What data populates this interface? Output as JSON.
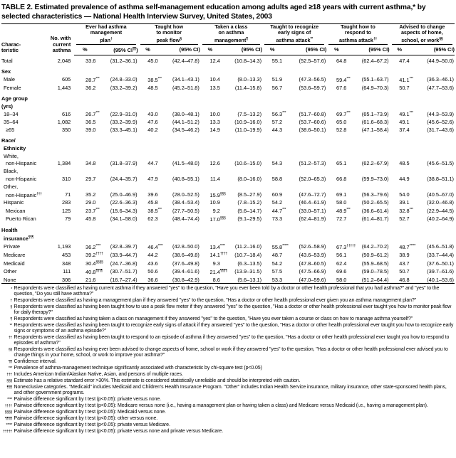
{
  "title": {
    "line1": "TABLE 2. Estimated prevalence of asthma self-management education among adults aged ≥18 years with current asthma,* by",
    "line2": "selected characteristics — National Health Interview Survey, United States, 2003"
  },
  "table": {
    "char_header": [
      "Charac-",
      "teristic"
    ],
    "n_header": [
      "No. with",
      "current",
      "asthma"
    ],
    "pct_header": "%",
    "ci_header": "(95% CI)",
    "groups": [
      {
        "lines": [
          "Ever had asthma",
          "management",
          "plan"
        ],
        "sup": "†",
        "ci_sup": "¶¶"
      },
      {
        "lines": [
          "Taught how",
          "to monitor",
          "peak flow"
        ],
        "sup": "§",
        "ci_sup": ""
      },
      {
        "lines": [
          "Taken a class",
          "on asthma",
          "management"
        ],
        "sup": "¶",
        "ci_sup": ""
      },
      {
        "lines": [
          "Taught to recognize",
          "early signs of",
          "asthma attack"
        ],
        "sup": "**",
        "ci_sup": ""
      },
      {
        "lines": [
          "Taught how to",
          "respond to",
          "asthma attack"
        ],
        "sup": "††",
        "ci_sup": ""
      },
      {
        "lines": [
          "Advised to change",
          "aspects of home,",
          "school, or work"
        ],
        "sup": "§§",
        "ci_sup": ""
      }
    ],
    "rows": [
      {
        "label": "Total",
        "indent": 0,
        "bold": false,
        "gap": false,
        "sup": "",
        "n": "2,048",
        "cells": [
          [
            "33.6",
            "",
            "(31.2–36.1)"
          ],
          [
            "45.0",
            "",
            "(42.4–47.8)"
          ],
          [
            "12.4",
            "",
            "(10.8–14.3)"
          ],
          [
            "55.1",
            "",
            "(52.5–57.6)"
          ],
          [
            "64.8",
            "",
            "(62.4–67.2)"
          ],
          [
            "47.4",
            "",
            "(44.9–50.0)"
          ]
        ]
      },
      {
        "label": "Sex",
        "indent": 0,
        "bold": true,
        "gap": true,
        "sup": "",
        "n": "",
        "cells": []
      },
      {
        "label": "Male",
        "indent": 1,
        "bold": false,
        "gap": false,
        "sup": "",
        "n": "605",
        "cells": [
          [
            "28.7",
            "***",
            "(24.8–33.0)"
          ],
          [
            "38.5",
            "***",
            "(34.1–43.1)"
          ],
          [
            "10.4",
            "",
            "(8.0–13.3)"
          ],
          [
            "51.9",
            "",
            "(47.3–56.5)"
          ],
          [
            "59.4",
            "***",
            "(55.1–63.7)"
          ],
          [
            "41.1",
            "***",
            "(36.3–46.1)"
          ]
        ]
      },
      {
        "label": "Female",
        "indent": 1,
        "bold": false,
        "gap": false,
        "sup": "",
        "n": "1,443",
        "cells": [
          [
            "36.2",
            "",
            "(33.2–39.2)"
          ],
          [
            "48.5",
            "",
            "(45.2–51.8)"
          ],
          [
            "13.5",
            "",
            "(11.4–15.8)"
          ],
          [
            "56.7",
            "",
            "(53.6–59.7)"
          ],
          [
            "67.6",
            "",
            "(64.9–70.3)"
          ],
          [
            "50.7",
            "",
            "(47.7–53.6)"
          ]
        ]
      },
      {
        "label": "Age group",
        "indent": 0,
        "bold": true,
        "gap": true,
        "sup": "",
        "n": "",
        "cells": []
      },
      {
        "label": "(yrs)",
        "indent": 0,
        "bold": true,
        "gap": false,
        "sup": "",
        "n": "",
        "cells": []
      },
      {
        "label": "18–34",
        "indent": 1,
        "bold": false,
        "gap": false,
        "sup": "",
        "n": "616",
        "cells": [
          [
            "26.7",
            "***",
            "(22.9–31.0)"
          ],
          [
            "43.0",
            "",
            "(38.0–48.1)"
          ],
          [
            "10.0",
            "",
            "(7.5–13.2)"
          ],
          [
            "56.3",
            "***",
            "(51.7–60.8)"
          ],
          [
            "69.7",
            "***",
            "(65.1–73.9)"
          ],
          [
            "49.1",
            "***",
            "(44.3–53.9)"
          ]
        ]
      },
      {
        "label": "35–64",
        "indent": 1,
        "bold": false,
        "gap": false,
        "sup": "",
        "n": "1,082",
        "cells": [
          [
            "36.5",
            "",
            "(33.2–39.9)"
          ],
          [
            "47.6",
            "",
            "(44.1–51.2)"
          ],
          [
            "13.3",
            "",
            "(10.9–16.0)"
          ],
          [
            "57.2",
            "",
            "(53.7–60.6)"
          ],
          [
            "65.0",
            "",
            "(61.6–68.3)"
          ],
          [
            "49.1",
            "",
            "(45.6–52.6)"
          ]
        ]
      },
      {
        "label": "≥65",
        "indent": 2,
        "bold": false,
        "gap": false,
        "sup": "",
        "n": "350",
        "cells": [
          [
            "39.0",
            "",
            "(33.3–45.1)"
          ],
          [
            "40.2",
            "",
            "(34.5–46.2)"
          ],
          [
            "14.9",
            "",
            "(11.0–19.9)"
          ],
          [
            "44.3",
            "",
            "(38.6–50.1)"
          ],
          [
            "52.8",
            "",
            "(47.1–58.4)"
          ],
          [
            "37.4",
            "",
            "(31.7–43.6)"
          ]
        ]
      },
      {
        "label": "Race/",
        "indent": 0,
        "bold": true,
        "gap": true,
        "sup": "",
        "n": "",
        "cells": []
      },
      {
        "label": "Ethnicity",
        "indent": 1,
        "bold": true,
        "gap": false,
        "sup": "",
        "n": "",
        "cells": []
      },
      {
        "label": "White,",
        "indent": 1,
        "bold": false,
        "gap": false,
        "sup": "",
        "n": "",
        "cells": []
      },
      {
        "label": "non-Hispanic",
        "indent": 2,
        "bold": false,
        "gap": false,
        "sup": "",
        "n": "1,384",
        "cells": [
          [
            "34.8",
            "",
            "(31.8–37.9)"
          ],
          [
            "44.7",
            "",
            "(41.5–48.0)"
          ],
          [
            "12.6",
            "",
            "(10.6–15.0)"
          ],
          [
            "54.3",
            "",
            "(51.2–57.3)"
          ],
          [
            "65.1",
            "",
            "(62.2–67.9)"
          ],
          [
            "48.5",
            "",
            "(45.6–51.5)"
          ]
        ]
      },
      {
        "label": "Black,",
        "indent": 1,
        "bold": false,
        "gap": false,
        "sup": "",
        "n": "",
        "cells": []
      },
      {
        "label": "non-Hispanic",
        "indent": 2,
        "bold": false,
        "gap": false,
        "sup": "",
        "n": "310",
        "cells": [
          [
            "29.7",
            "",
            "(24.4–35.7)"
          ],
          [
            "47.9",
            "",
            "(40.8–55.1)"
          ],
          [
            "11.4",
            "",
            "(8.0–16.0)"
          ],
          [
            "58.8",
            "",
            "(52.0–65.3)"
          ],
          [
            "66.8",
            "",
            "(59.9–73.0)"
          ],
          [
            "44.9",
            "",
            "(38.8–51.1)"
          ]
        ]
      },
      {
        "label": "Other,",
        "indent": 1,
        "bold": false,
        "gap": false,
        "sup": "",
        "n": "",
        "cells": []
      },
      {
        "label": "non-Hispanic",
        "indent": 2,
        "bold": false,
        "gap": false,
        "sup": "†††",
        "n": "71",
        "cells": [
          [
            "35.2",
            "",
            "(25.0–46.9)"
          ],
          [
            "39.6",
            "",
            "(28.0–52.5)"
          ],
          [
            "15.9",
            "§§§",
            "(8.5–27.9)"
          ],
          [
            "60.9",
            "",
            "(47.6–72.7)"
          ],
          [
            "69.1",
            "",
            "(56.3–79.6)"
          ],
          [
            "54.0",
            "",
            "(40.5–67.0)"
          ]
        ]
      },
      {
        "label": "Hispanic",
        "indent": 1,
        "bold": false,
        "gap": false,
        "sup": "",
        "n": "283",
        "cells": [
          [
            "29.0",
            "",
            "(22.6–36.3)"
          ],
          [
            "45.8",
            "",
            "(38.4–53.4)"
          ],
          [
            "10.9",
            "",
            "(7.8–15.2)"
          ],
          [
            "54.2",
            "",
            "(46.4–61.9)"
          ],
          [
            "58.0",
            "",
            "(50.2–65.5)"
          ],
          [
            "39.1",
            "",
            "(32.0–46.8)"
          ]
        ]
      },
      {
        "label": "Mexican",
        "indent": 2,
        "bold": false,
        "gap": false,
        "sup": "",
        "n": "125",
        "cells": [
          [
            "23.7",
            "***",
            "(15.6–34.3)"
          ],
          [
            "38.5",
            "***",
            "(27.7–50.5)"
          ],
          [
            "9.2",
            "",
            "(5.6–14.7)"
          ],
          [
            "44.7",
            "***",
            "(33.0–57.1)"
          ],
          [
            "48.9",
            "***",
            "(36.6–61.4)"
          ],
          [
            "32.8",
            "***",
            "(22.9–44.5)"
          ]
        ]
      },
      {
        "label": "Puerto Rican",
        "indent": 2,
        "bold": false,
        "gap": false,
        "sup": "",
        "n": "79",
        "cells": [
          [
            "45.8",
            "",
            "(34.1–58.0)"
          ],
          [
            "62.3",
            "",
            "(48.4–74.4)"
          ],
          [
            "17.0",
            "§§§",
            "(9.1–29.5)"
          ],
          [
            "73.3",
            "",
            "(62.4–81.9)"
          ],
          [
            "72.7",
            "",
            "(61.4–81.7)"
          ],
          [
            "52.7",
            "",
            "(40.2–64.9)"
          ]
        ]
      },
      {
        "label": "Health",
        "indent": 0,
        "bold": true,
        "gap": true,
        "sup": "",
        "n": "",
        "cells": []
      },
      {
        "label": "insurance",
        "indent": 1,
        "bold": true,
        "gap": false,
        "sup": "¶¶¶",
        "n": "",
        "cells": []
      },
      {
        "label": "Private",
        "indent": 1,
        "bold": false,
        "gap": false,
        "sup": "",
        "n": "1,193",
        "cells": [
          [
            "36.2",
            "****",
            "(32.8–39.7)"
          ],
          [
            "46.4",
            "****",
            "(42.8–50.0)"
          ],
          [
            "13.4",
            "****",
            "(11.2–16.0)"
          ],
          [
            "55.8",
            "*****",
            "(52.6–58.9)"
          ],
          [
            "67.3",
            "†††††",
            "(64.2–70.2)"
          ],
          [
            "48.7",
            "*****",
            "(45.6–51.8)"
          ]
        ]
      },
      {
        "label": "Medicare",
        "indent": 1,
        "bold": false,
        "gap": false,
        "sup": "",
        "n": "453",
        "cells": [
          [
            "39.2",
            "††††",
            "(33.9–44.7)"
          ],
          [
            "44.2",
            "",
            "(38.6–49.8)"
          ],
          [
            "14.1",
            "††††",
            "(10.7–18.4)"
          ],
          [
            "48.7",
            "",
            "(43.6–53.9)"
          ],
          [
            "56.1",
            "",
            "(50.9–61.2)"
          ],
          [
            "38.9",
            "",
            "(33.7–44.4)"
          ]
        ]
      },
      {
        "label": "Medicaid",
        "indent": 1,
        "bold": false,
        "gap": false,
        "sup": "",
        "n": "348",
        "cells": [
          [
            "30.4",
            "§§§§",
            "(24.7–36.8)"
          ],
          [
            "43.6",
            "",
            "(37.6–49.8)"
          ],
          [
            "9.3",
            "",
            "(6.3–13.5)"
          ],
          [
            "54.2",
            "",
            "(47.8–60.5)"
          ],
          [
            "62.4",
            "",
            "(55.9–68.5)"
          ],
          [
            "43.7",
            "",
            "(37.6–50.1)"
          ]
        ]
      },
      {
        "label": "Other",
        "indent": 1,
        "bold": false,
        "gap": false,
        "sup": "",
        "n": "111",
        "cells": [
          [
            "40.8",
            "¶¶¶¶",
            "(30.7–51.7)"
          ],
          [
            "50.6",
            "",
            "(39.4–61.6)"
          ],
          [
            "21.4",
            "¶¶¶¶",
            "(13.9–31.5)"
          ],
          [
            "57.5",
            "",
            "(47.5–66.9)"
          ],
          [
            "69.6",
            "",
            "(59.0–78.5)"
          ],
          [
            "50.7",
            "",
            "(39.7–61.6)"
          ]
        ]
      },
      {
        "label": "None",
        "indent": 1,
        "bold": false,
        "gap": false,
        "sup": "",
        "n": "306",
        "cells": [
          [
            "21.6",
            "",
            "(16.7–27.4)"
          ],
          [
            "36.6",
            "",
            "(30.8–42.9)"
          ],
          [
            "8.6",
            "",
            "(5.6–13.1)"
          ],
          [
            "53.3",
            "",
            "(47.0–59.6)"
          ],
          [
            "58.0",
            "",
            "(51.2–64.4)"
          ],
          [
            "46.8",
            "",
            "(40.1–53.6)"
          ]
        ]
      }
    ]
  },
  "footnotes": [
    {
      "mark": "*",
      "text": "Respondents were classified as having current asthma if they answered \"yes\" to the question, \"Have you ever been told by a doctor or other health professional that you had asthma?\" and \"yes\" to the question, \"Do you still have asthma?\""
    },
    {
      "mark": "†",
      "text": "Respondents were classified as having a management plan if they answered \"yes\" to the question, \"Has a doctor or other health professional ever given you an asthma management plan?\""
    },
    {
      "mark": "§",
      "text": "Respondents were classified as having been taught how to use a peak flow meter if they answered \"yes\" to the question, \"Has a doctor or other health professional ever taught you how to monitor peak flow for daily therapy?\""
    },
    {
      "mark": "¶",
      "text": "Respondents were classified as having taken a class on management if they answered \"yes\" to the question, \"Have you ever taken a course or class on how to manage asthma yourself?\""
    },
    {
      "mark": "**",
      "text": "Respondents were classified as having been taught to recognize early signs of attack if they answered \"yes\" to the question, \"Has a doctor or other health professional ever taught you how to recognize early signs or symptoms of an asthma episode?\""
    },
    {
      "mark": "††",
      "text": "Respondents were classified as having been taught to respond to an episode of asthma if they answered \"yes\" to the question, \"Has a doctor or other health professional ever taught you how to respond to episodes of asthma?\""
    },
    {
      "mark": "§§",
      "text": "Respondents were classified as having ever been advised to change aspects of home, school or work if they answered \"yes\" to the question, \"Has a doctor or other health professional ever advised you to change things in your home, school, or work to improve your asthma?\""
    },
    {
      "mark": "¶¶",
      "text": "Confidence interval."
    },
    {
      "mark": "***",
      "text": "Prevalence of asthma-management technique significantly associated with characteristic by chi-square test (p<0.05)"
    },
    {
      "mark": "†††",
      "text": "Includes American Indian/Alaskan Native, Asian, and persons of multiple races."
    },
    {
      "mark": "§§§",
      "text": "Estimate has a relative standard error >30%. This estimate is considered statistically unreliable and should be interpreted with caution."
    },
    {
      "mark": "¶¶¶",
      "text": "Nonexclusive categories. \"Medicaid\" includes Medicaid and Children's Health Insurance Program. \"Other\" includes Indian Health Service insurance, military insurance, other state-sponsored health plans, and other government programs."
    },
    {
      "mark": "****",
      "text": "Pairwise difference significant by t test (p<0.05): private versus none."
    },
    {
      "mark": "††††",
      "text": "Pairwise difference significant by t test (p<0.05): Medicare versus none (i.e., having a management plan or having taken a class) and Medicare versus Medicaid (i.e., having a management plan)."
    },
    {
      "mark": "§§§§",
      "text": "Pairwise difference significant by t test (p<0.05): Medicaid versus none."
    },
    {
      "mark": "¶¶¶¶",
      "text": "Pairwise difference significant by t test (p<0.05): other versus none."
    },
    {
      "mark": "*****",
      "text": "Pairwise difference significant by t test (p<0.05): private versus Medicare."
    },
    {
      "mark": "†††††",
      "text": "Pairwise difference significant by t test (p<0.05): private versus none and private versus Medicare."
    }
  ]
}
